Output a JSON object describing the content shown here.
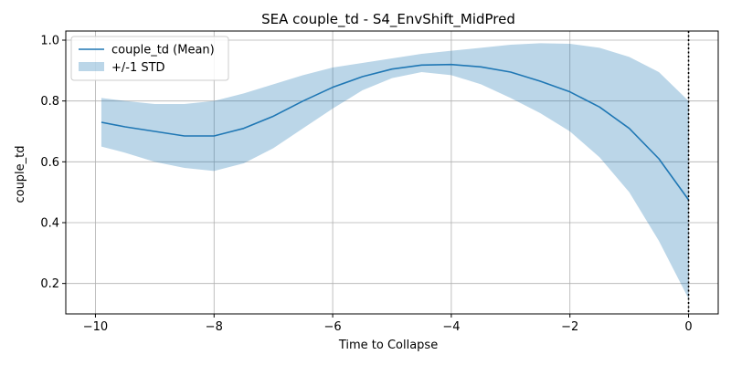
{
  "chart_data": {
    "type": "line",
    "title": "SEA couple_td - S4_EnvShift_MidPred",
    "xlabel": "Time to Collapse",
    "ylabel": "couple_td",
    "xlim": [
      -10.5,
      0.5
    ],
    "ylim": [
      0.1,
      1.03
    ],
    "xticks": [
      -10,
      -8,
      -6,
      -4,
      -2,
      0
    ],
    "xtick_labels": [
      "−10",
      "−8",
      "−6",
      "−4",
      "−2",
      "0"
    ],
    "yticks": [
      0.2,
      0.4,
      0.6,
      0.8,
      1.0
    ],
    "ytick_labels": [
      "0.2",
      "0.4",
      "0.6",
      "0.8",
      "1.0"
    ],
    "grid": true,
    "legend_position": "top-left",
    "vline": {
      "x": 0,
      "style": "dotted",
      "color": "#000000"
    },
    "series": [
      {
        "name": "couple_td (Mean)",
        "color": "#1f77b4",
        "x": [
          -9.9,
          -9.5,
          -9,
          -8.5,
          -8,
          -7.5,
          -7,
          -6.5,
          -6,
          -5.5,
          -5,
          -4.5,
          -4,
          -3.5,
          -3,
          -2.5,
          -2,
          -1.5,
          -1,
          -0.5,
          0
        ],
        "y": [
          0.73,
          0.715,
          0.7,
          0.685,
          0.685,
          0.71,
          0.75,
          0.8,
          0.845,
          0.88,
          0.905,
          0.918,
          0.92,
          0.912,
          0.895,
          0.865,
          0.83,
          0.78,
          0.71,
          0.61,
          0.475
        ]
      }
    ],
    "band": {
      "name": "+/-1 STD",
      "color": "#1f77b4",
      "opacity": 0.3,
      "x": [
        -9.9,
        -9.5,
        -9,
        -8.5,
        -8,
        -7.5,
        -7,
        -6.5,
        -6,
        -5.5,
        -5,
        -4.5,
        -4,
        -3.5,
        -3,
        -2.5,
        -2,
        -1.5,
        -1,
        -0.5,
        0
      ],
      "upper": [
        0.81,
        0.8,
        0.79,
        0.79,
        0.8,
        0.825,
        0.855,
        0.885,
        0.91,
        0.925,
        0.94,
        0.955,
        0.965,
        0.975,
        0.985,
        0.99,
        0.988,
        0.975,
        0.945,
        0.895,
        0.8
      ],
      "lower": [
        0.65,
        0.63,
        0.6,
        0.58,
        0.57,
        0.595,
        0.645,
        0.71,
        0.775,
        0.835,
        0.875,
        0.895,
        0.885,
        0.855,
        0.81,
        0.76,
        0.7,
        0.615,
        0.5,
        0.34,
        0.15
      ]
    }
  }
}
